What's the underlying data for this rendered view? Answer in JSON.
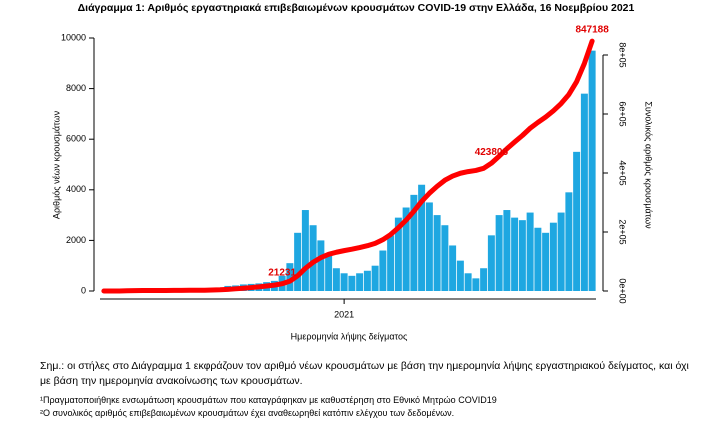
{
  "chart_data": {
    "type": "bar",
    "title": "Διάγραμμα 1: Αριθμός εργαστηριακά επιβεβαιωμένων κρουσμάτων COVID-19 στην Ελλάδα, 16 Νοεμβρίου 2021",
    "x_label": "Ημερομηνία λήψης δείγματος",
    "y_label": "Αριθμός νέων κρουσμάτων",
    "y2_label": "Συνολικός αριθμός κρουσμάτων",
    "categories": [
      null,
      null,
      null,
      null,
      null,
      null,
      null,
      null,
      null,
      null,
      null,
      null,
      null,
      null,
      null,
      null,
      null,
      null,
      null,
      null,
      null,
      null,
      null,
      null,
      null,
      null,
      null,
      null,
      null,
      null,
      null,
      "2021",
      null,
      null,
      null,
      null,
      null,
      null,
      null,
      null,
      null,
      null,
      null,
      null,
      null,
      null,
      null,
      null,
      null,
      null,
      null,
      null,
      null,
      null,
      null,
      null,
      null,
      null,
      null,
      null,
      null,
      null,
      null,
      null
    ],
    "series": [
      {
        "type": "bar",
        "color": "#1ea7e1",
        "values": [
          0,
          2,
          20,
          60,
          80,
          40,
          15,
          10,
          10,
          15,
          20,
          25,
          20,
          30,
          60,
          110,
          200,
          220,
          260,
          280,
          300,
          350,
          400,
          600,
          1100,
          2300,
          3200,
          2600,
          2000,
          1400,
          900,
          700,
          600,
          700,
          800,
          1000,
          1600,
          2200,
          2900,
          3300,
          3800,
          4200,
          3500,
          3000,
          2600,
          1800,
          1200,
          700,
          500,
          900,
          2200,
          3000,
          3200,
          2900,
          2800,
          3100,
          2500,
          2300,
          2700,
          3100,
          3900,
          5500,
          7800,
          9500
        ]
      },
      {
        "type": "line",
        "axis": "y2",
        "color": "#ff0000",
        "values": [
          0,
          16,
          174,
          648,
          1280,
          1596,
          1714,
          1793,
          1872,
          1991,
          2149,
          2346,
          2504,
          2741,
          3215,
          4084,
          5664,
          7402,
          9456,
          11668,
          14038,
          16803,
          19963,
          24703,
          33393,
          51563,
          76843,
          97383,
          113183,
          124243,
          131353,
          136883,
          141623,
          147153,
          153473,
          161373,
          174013,
          191393,
          214303,
          240373,
          270393,
          303573,
          331223,
          354923,
          375463,
          389683,
          399163,
          404693,
          408643,
          415753,
          433133,
          456833,
          482113,
          505023,
          527143,
          551633,
          571383,
          589553,
          610883,
          635373,
          666183,
          709633,
          771253,
          847188
        ]
      }
    ],
    "annotations": [
      "21231",
      "423808",
      "847188"
    ],
    "ylim": [
      0,
      10000
    ],
    "yticks": [
      0,
      2000,
      4000,
      6000,
      8000,
      10000
    ],
    "y2lim": [
      0,
      857600
    ],
    "y2ticks": [
      {
        "value": 0,
        "label": "0e+00"
      },
      {
        "value": 200000,
        "label": "2e+05"
      },
      {
        "value": 400000,
        "label": "4e+05"
      },
      {
        "value": 600000,
        "label": "6e+05"
      },
      {
        "value": 800000,
        "label": "8e+05"
      }
    ]
  },
  "notes": [
    "Σημ.: οι στήλες στο Διάγραμμα 1 εκφράζουν τον αριθμό νέων κρουσμάτων με βάση την ημερομηνία λήψης εργαστηριακού δείγματος, και όχι",
    "με βάση την ημερομηνία ανακοίνωσης των κρουσμάτων.",
    "¹Πραγματοποιήθηκε ενσωμάτωση κρουσμάτων που καταγράφηκαν με καθυστέρηση στο Εθνικό Μητρώο COVID19",
    "²Ο συνολικός αριθμός επιβεβαιωμένων κρουσμάτων έχει αναθεωρηθεί κατόπιν ελέγχου των δεδομένων."
  ]
}
